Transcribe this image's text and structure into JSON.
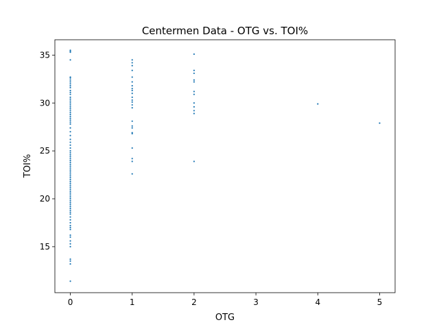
{
  "chart_data": {
    "type": "scatter",
    "title": "Centermen Data - OTG vs. TOI%",
    "xlabel": "OTG",
    "ylabel": "TOI%",
    "xlim": [
      -0.25,
      5.25
    ],
    "ylim": [
      10.2,
      36.6
    ],
    "xticks": [
      0,
      1,
      2,
      3,
      4,
      5
    ],
    "yticks": [
      15,
      20,
      25,
      30,
      35
    ],
    "grid": false,
    "marker_color": "#1f77b4",
    "series": [
      {
        "points": [
          [
            0,
            35.5
          ],
          [
            0,
            35.4
          ],
          [
            0,
            35.3
          ],
          [
            0,
            34.5
          ],
          [
            0,
            32.7
          ],
          [
            0,
            32.6
          ],
          [
            0,
            32.4
          ],
          [
            0,
            32.2
          ],
          [
            0,
            32.0
          ],
          [
            0,
            31.8
          ],
          [
            0,
            31.6
          ],
          [
            0,
            31.3
          ],
          [
            0,
            31.1
          ],
          [
            0,
            30.9
          ],
          [
            0,
            30.6
          ],
          [
            0,
            30.4
          ],
          [
            0,
            30.2
          ],
          [
            0,
            30.0
          ],
          [
            0,
            29.8
          ],
          [
            0,
            29.6
          ],
          [
            0,
            29.4
          ],
          [
            0,
            29.2
          ],
          [
            0,
            29.0
          ],
          [
            0,
            28.8
          ],
          [
            0,
            28.6
          ],
          [
            0,
            28.4
          ],
          [
            0,
            28.2
          ],
          [
            0,
            28.0
          ],
          [
            0,
            27.8
          ],
          [
            0,
            27.4
          ],
          [
            0,
            27.0
          ],
          [
            0,
            26.6
          ],
          [
            0,
            26.2
          ],
          [
            0,
            25.9
          ],
          [
            0,
            25.6
          ],
          [
            0,
            25.3
          ],
          [
            0,
            25.0
          ],
          [
            0,
            24.8
          ],
          [
            0,
            24.6
          ],
          [
            0,
            24.4
          ],
          [
            0,
            24.2
          ],
          [
            0,
            24.0
          ],
          [
            0,
            23.8
          ],
          [
            0,
            23.6
          ],
          [
            0,
            23.4
          ],
          [
            0,
            23.2
          ],
          [
            0,
            23.0
          ],
          [
            0,
            22.8
          ],
          [
            0,
            22.6
          ],
          [
            0,
            22.4
          ],
          [
            0,
            22.2
          ],
          [
            0,
            22.0
          ],
          [
            0,
            21.8
          ],
          [
            0,
            21.6
          ],
          [
            0,
            21.4
          ],
          [
            0,
            21.2
          ],
          [
            0,
            21.0
          ],
          [
            0,
            20.8
          ],
          [
            0,
            20.6
          ],
          [
            0,
            20.4
          ],
          [
            0,
            20.2
          ],
          [
            0,
            20.0
          ],
          [
            0,
            19.8
          ],
          [
            0,
            19.6
          ],
          [
            0,
            19.4
          ],
          [
            0,
            19.2
          ],
          [
            0,
            19.0
          ],
          [
            0,
            18.8
          ],
          [
            0,
            18.6
          ],
          [
            0,
            18.4
          ],
          [
            0,
            18.1
          ],
          [
            0,
            17.8
          ],
          [
            0,
            17.5
          ],
          [
            0,
            17.2
          ],
          [
            0,
            17.0
          ],
          [
            0,
            16.8
          ],
          [
            0,
            16.2
          ],
          [
            0,
            16.0
          ],
          [
            0,
            15.6
          ],
          [
            0,
            15.3
          ],
          [
            0,
            15.0
          ],
          [
            0,
            13.7
          ],
          [
            0,
            13.5
          ],
          [
            0,
            13.2
          ],
          [
            0,
            11.4
          ],
          [
            1,
            34.5
          ],
          [
            1,
            34.2
          ],
          [
            1,
            33.9
          ],
          [
            1,
            33.4
          ],
          [
            1,
            32.7
          ],
          [
            1,
            32.2
          ],
          [
            1,
            31.8
          ],
          [
            1,
            31.5
          ],
          [
            1,
            31.3
          ],
          [
            1,
            31.0
          ],
          [
            1,
            30.6
          ],
          [
            1,
            30.3
          ],
          [
            1,
            30.1
          ],
          [
            1,
            29.8
          ],
          [
            1,
            29.5
          ],
          [
            1,
            28.1
          ],
          [
            1,
            27.6
          ],
          [
            1,
            27.4
          ],
          [
            1,
            26.9
          ],
          [
            1,
            26.8
          ],
          [
            1,
            25.3
          ],
          [
            1,
            24.2
          ],
          [
            1,
            23.9
          ],
          [
            1,
            22.6
          ],
          [
            2,
            35.1
          ],
          [
            2,
            33.4
          ],
          [
            2,
            33.1
          ],
          [
            2,
            32.4
          ],
          [
            2,
            32.2
          ],
          [
            2,
            31.2
          ],
          [
            2,
            30.9
          ],
          [
            2,
            30.0
          ],
          [
            2,
            29.6
          ],
          [
            2,
            29.2
          ],
          [
            2,
            28.9
          ],
          [
            2,
            23.9
          ],
          [
            4,
            29.9
          ],
          [
            5,
            27.9
          ]
        ]
      }
    ]
  }
}
